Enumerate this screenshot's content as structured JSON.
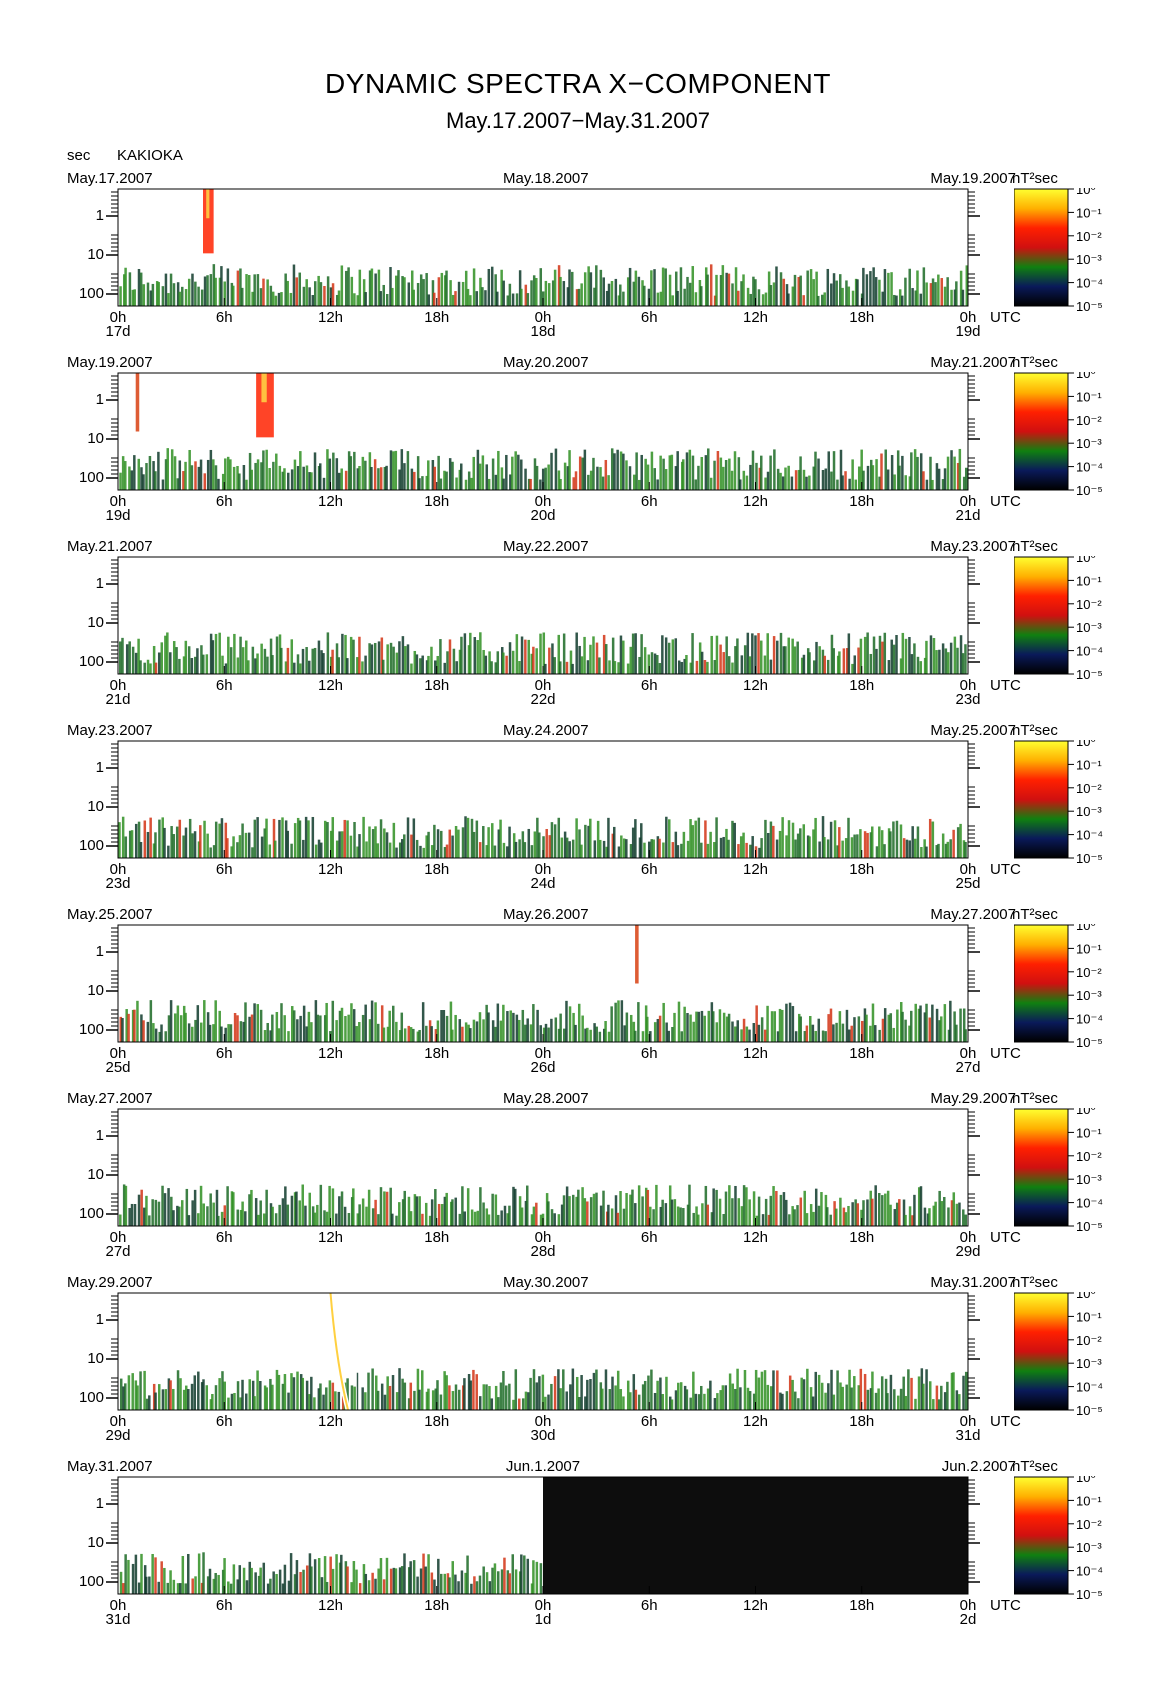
{
  "header": {
    "title": "DYNAMIC SPECTRA X−COMPONENT",
    "subtitle": "May.17.2007−May.31.2007",
    "y_unit": "sec",
    "station": "KAKIOKA",
    "utc_label": "UTC",
    "colorbar_unit": "nT²sec"
  },
  "chart_data": {
    "type": "heatmap",
    "title": "DYNAMIC SPECTRA X−COMPONENT",
    "subtitle": "May.17.2007−May.31.2007",
    "station": "KAKIOKA",
    "ylabel": "sec",
    "y_scale": "log",
    "y_ticks": [
      "1",
      "10",
      "100"
    ],
    "x_ticks": [
      "0h",
      "6h",
      "12h",
      "18h",
      "0h",
      "6h",
      "12h",
      "18h",
      "0h"
    ],
    "x_unit": "UTC",
    "colorbar": {
      "label": "nT²sec",
      "scale": "log",
      "ticks": [
        "10⁰",
        "10⁻¹",
        "10⁻²",
        "10⁻³",
        "10⁻⁴",
        "10⁻⁵"
      ],
      "colors": [
        "#ffff30",
        "#ffb000",
        "#ff2000",
        "#d01010",
        "#108010",
        "#0a1a5a",
        "#000000"
      ]
    },
    "panels": [
      {
        "start_label": "May.17.2007",
        "mid_label": "May.18.2007",
        "end_label": "May.19.2007",
        "day_labels": [
          "17d",
          "18d",
          "19d"
        ],
        "has_data_fraction": 1.0,
        "events": [
          {
            "hour": 4.8,
            "width_h": 0.6,
            "kind": "burst"
          }
        ]
      },
      {
        "start_label": "May.19.2007",
        "mid_label": "May.20.2007",
        "end_label": "May.21.2007",
        "day_labels": [
          "19d",
          "20d",
          "21d"
        ],
        "has_data_fraction": 1.0,
        "events": [
          {
            "hour": 1.0,
            "width_h": 0.2,
            "kind": "spike"
          },
          {
            "hour": 7.8,
            "width_h": 1.0,
            "kind": "burst"
          }
        ]
      },
      {
        "start_label": "May.21.2007",
        "mid_label": "May.22.2007",
        "end_label": "May.23.2007",
        "day_labels": [
          "21d",
          "22d",
          "23d"
        ],
        "has_data_fraction": 1.0,
        "events": []
      },
      {
        "start_label": "May.23.2007",
        "mid_label": "May.24.2007",
        "end_label": "May.25.2007",
        "day_labels": [
          "23d",
          "24d",
          "25d"
        ],
        "has_data_fraction": 1.0,
        "events": []
      },
      {
        "start_label": "May.25.2007",
        "mid_label": "May.26.2007",
        "end_label": "May.27.2007",
        "day_labels": [
          "25d",
          "26d",
          "27d"
        ],
        "has_data_fraction": 1.0,
        "events": [
          {
            "hour": 29.2,
            "width_h": 0.2,
            "kind": "spike"
          }
        ]
      },
      {
        "start_label": "May.27.2007",
        "mid_label": "May.28.2007",
        "end_label": "May.29.2007",
        "day_labels": [
          "27d",
          "28d",
          "29d"
        ],
        "has_data_fraction": 1.0,
        "events": []
      },
      {
        "start_label": "May.29.2007",
        "mid_label": "May.30.2007",
        "end_label": "May.31.2007",
        "day_labels": [
          "29d",
          "30d",
          "31d"
        ],
        "has_data_fraction": 1.0,
        "events": [
          {
            "hour": 12.0,
            "width_h": 1.1,
            "kind": "white"
          }
        ]
      },
      {
        "start_label": "May.31.2007",
        "mid_label": "Jun.1.2007",
        "end_label": "Jun.2.2007",
        "day_labels": [
          "31d",
          "1d",
          "2d"
        ],
        "has_data_fraction": 0.5,
        "events": []
      }
    ]
  }
}
